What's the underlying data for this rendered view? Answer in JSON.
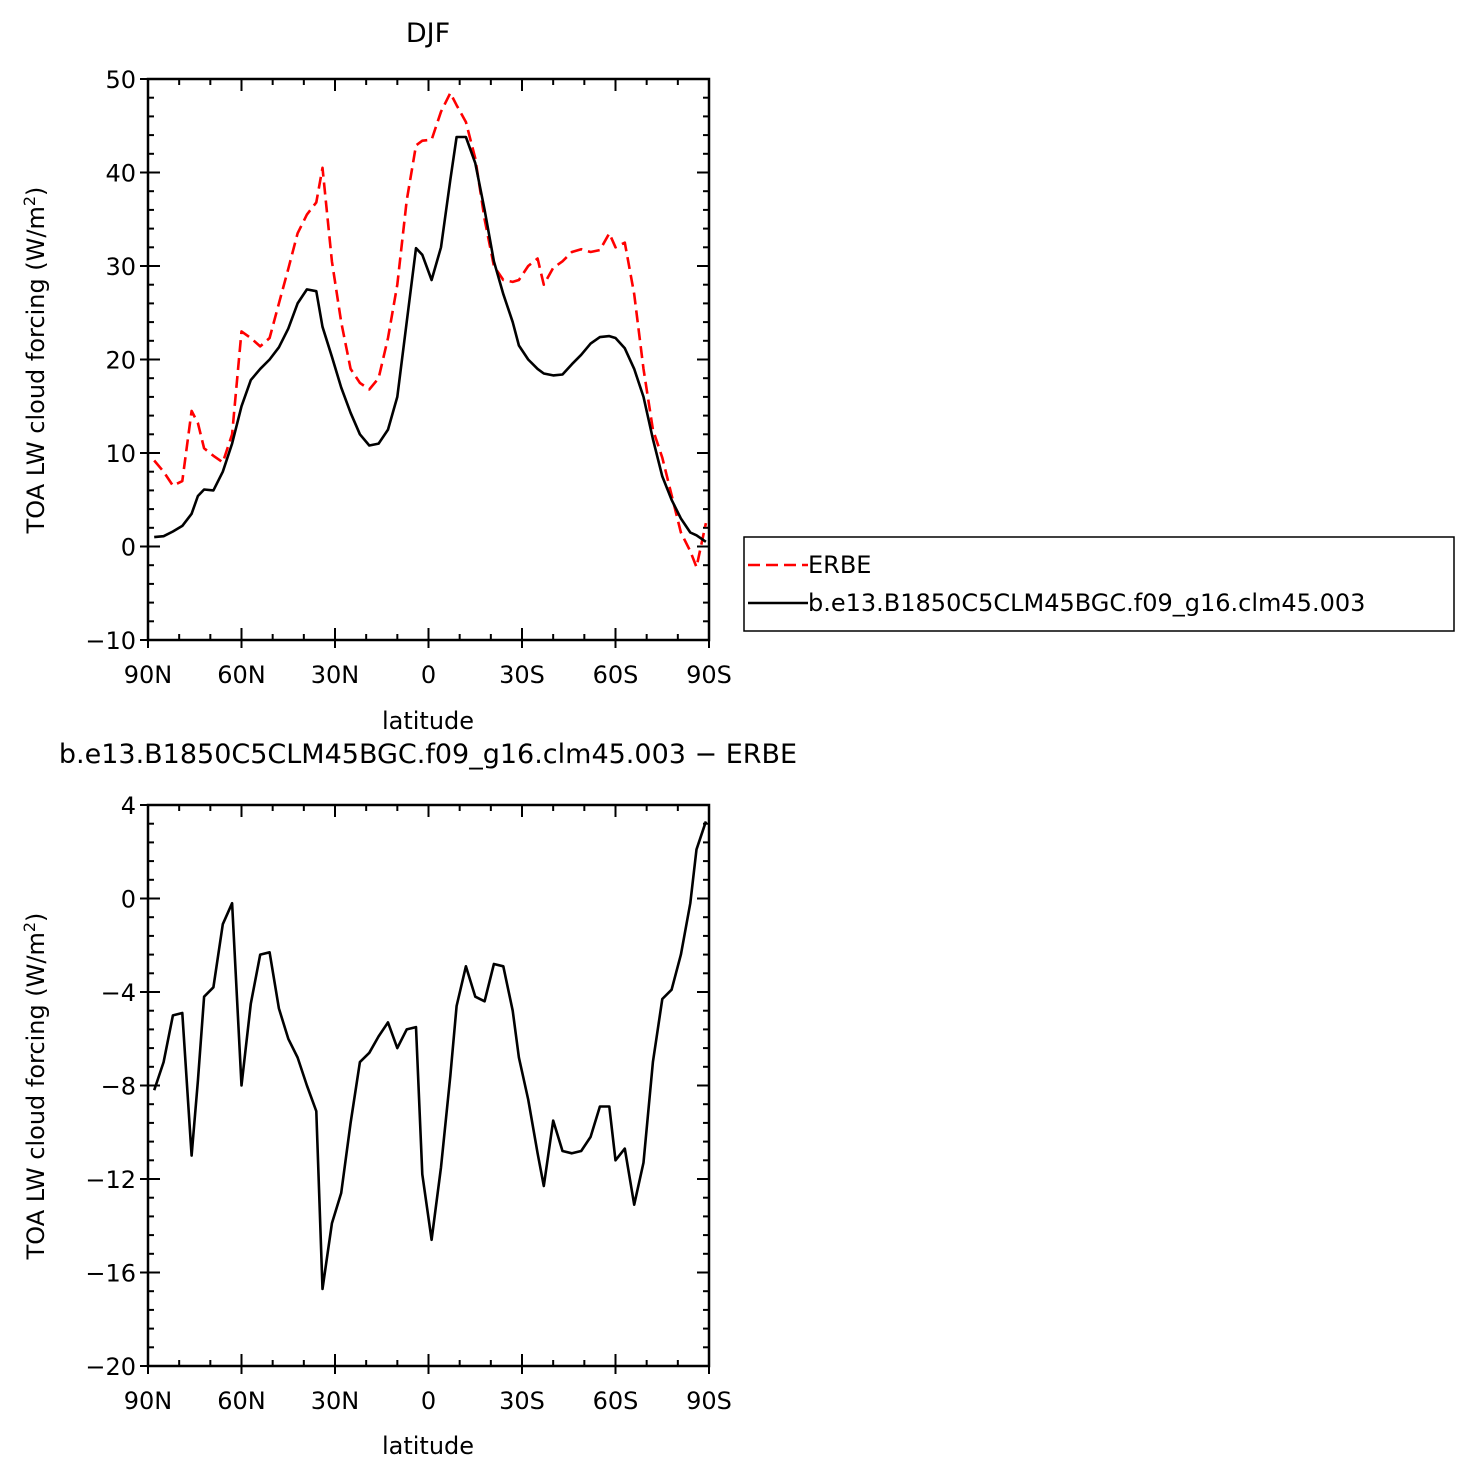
{
  "chart_data": [
    {
      "type": "line",
      "title": "DJF",
      "xlabel": "latitude",
      "ylabel": "TOA LW cloud forcing (W/m",
      "ylabel_sup": "2",
      "ylabel_close": ")",
      "xlim": [
        90,
        -90
      ],
      "ylim": [
        -10,
        50
      ],
      "x_ticks": [
        {
          "value": 90,
          "label": "90N"
        },
        {
          "value": 60,
          "label": "60N"
        },
        {
          "value": 30,
          "label": "30N"
        },
        {
          "value": 0,
          "label": "0"
        },
        {
          "value": -30,
          "label": "30S"
        },
        {
          "value": -60,
          "label": "60S"
        },
        {
          "value": -90,
          "label": "90S"
        }
      ],
      "y_ticks": [
        -10,
        0,
        10,
        20,
        30,
        40,
        50
      ],
      "y_tick_labels": [
        "−10",
        "0",
        "10",
        "20",
        "30",
        "40",
        "50"
      ],
      "legend_position": "right",
      "series": [
        {
          "name": "ERBE",
          "color": "#ff0000",
          "dash": true,
          "x": [
            88,
            85,
            82,
            79,
            76,
            74,
            72,
            69,
            66,
            63,
            60,
            57,
            54,
            51,
            48,
            45,
            42,
            39,
            36,
            34,
            31,
            28,
            25,
            22,
            19,
            16,
            13,
            10,
            7,
            4,
            2,
            -1,
            -4,
            -7,
            -9,
            -12,
            -15,
            -18,
            -21,
            -24,
            -27,
            -29,
            -32,
            -35,
            -37,
            -40,
            -43,
            -46,
            -49,
            -52,
            -55,
            -58,
            -60,
            -63,
            -66,
            -69,
            -72,
            -75,
            -78,
            -81,
            -84,
            -86,
            -89
          ],
          "values": [
            9.2,
            8.0,
            6.5,
            7.0,
            14.5,
            13.2,
            10.5,
            9.7,
            9.0,
            12.0,
            23.0,
            22.3,
            21.4,
            22.3,
            26.0,
            29.7,
            33.5,
            35.5,
            36.8,
            40.5,
            30.5,
            24.0,
            19.0,
            17.5,
            16.8,
            18.0,
            22.3,
            28.0,
            37.0,
            42.9,
            43.4,
            43.5,
            46.5,
            48.5,
            47.2,
            45.4,
            41.5,
            35.0,
            30.0,
            28.5,
            28.3,
            28.5,
            30.0,
            30.8,
            28.0,
            29.8,
            30.5,
            31.5,
            31.8,
            31.5,
            31.7,
            33.5,
            32.0,
            32.5,
            27.0,
            19.0,
            12.5,
            9.5,
            5.5,
            1.5,
            -0.5,
            -2.2,
            2.5
          ]
        },
        {
          "name": "b.e13.B1850C5CLM45BGC.f09_g16.clm45.003",
          "color": "#000000",
          "dash": false,
          "x": [
            88,
            85,
            82,
            79,
            76,
            74,
            72,
            69,
            66,
            63,
            60,
            57,
            54,
            51,
            48,
            45,
            42,
            39,
            36,
            34,
            31,
            28,
            25,
            22,
            19,
            16,
            13,
            10,
            7,
            4,
            2,
            -1,
            -4,
            -7,
            -9,
            -12,
            -15,
            -18,
            -21,
            -24,
            -27,
            -29,
            -32,
            -35,
            -37,
            -40,
            -43,
            -46,
            -49,
            -52,
            -55,
            -58,
            -60,
            -63,
            -66,
            -69,
            -72,
            -75,
            -78,
            -81,
            -84,
            -86,
            -89
          ],
          "values": [
            1.0,
            1.1,
            1.6,
            2.2,
            3.5,
            5.4,
            6.1,
            6.0,
            8.0,
            11.0,
            15.0,
            17.8,
            19.0,
            20.0,
            21.3,
            23.3,
            26.0,
            27.5,
            27.3,
            23.5,
            20.3,
            17.0,
            14.3,
            12.0,
            10.8,
            11.0,
            12.5,
            16.0,
            24.0,
            31.9,
            31.2,
            28.5,
            32.0,
            39.2,
            43.8,
            43.8,
            41.0,
            36.0,
            30.5,
            27.0,
            24.0,
            21.5,
            20.0,
            19.0,
            18.5,
            18.3,
            18.4,
            19.5,
            20.5,
            21.7,
            22.4,
            22.5,
            22.3,
            21.2,
            19.0,
            16.0,
            11.5,
            7.5,
            5.0,
            3.0,
            1.5,
            1.2,
            0.5
          ]
        }
      ]
    },
    {
      "type": "line",
      "title": "b.e13.B1850C5CLM45BGC.f09_g16.clm45.003 − ERBE",
      "xlabel": "latitude",
      "ylabel": "TOA LW cloud forcing (W/m",
      "ylabel_sup": "2",
      "ylabel_close": ")",
      "xlim": [
        90,
        -90
      ],
      "ylim": [
        -20,
        4
      ],
      "x_ticks": [
        {
          "value": 90,
          "label": "90N"
        },
        {
          "value": 60,
          "label": "60N"
        },
        {
          "value": 30,
          "label": "30N"
        },
        {
          "value": 0,
          "label": "0"
        },
        {
          "value": -30,
          "label": "30S"
        },
        {
          "value": -60,
          "label": "60S"
        },
        {
          "value": -90,
          "label": "90S"
        }
      ],
      "y_ticks": [
        -20,
        -16,
        -12,
        -8,
        -4,
        0,
        4
      ],
      "y_tick_labels": [
        "−20",
        "−16",
        "−12",
        "−8",
        "−4",
        "0",
        "4"
      ],
      "series": [
        {
          "name": "",
          "color": "#000000",
          "dash": false,
          "x": [
            88,
            85,
            82,
            79,
            76,
            74,
            72,
            69,
            66,
            63,
            60,
            57,
            54,
            51,
            48,
            45,
            42,
            39,
            36,
            34,
            31,
            28,
            25,
            22,
            19,
            16,
            13,
            10,
            7,
            4,
            2,
            -1,
            -4,
            -7,
            -9,
            -12,
            -15,
            -18,
            -21,
            -24,
            -27,
            -29,
            -32,
            -35,
            -37,
            -40,
            -43,
            -46,
            -49,
            -52,
            -55,
            -58,
            -60,
            -63,
            -66,
            -69,
            -72,
            -75,
            -78,
            -81,
            -84,
            -86,
            -89
          ],
          "values": [
            -8.2,
            -7.0,
            -5.0,
            -4.9,
            -11.0,
            -7.8,
            -4.2,
            -3.8,
            -1.1,
            -0.2,
            -8.0,
            -4.5,
            -2.4,
            -2.3,
            -4.7,
            -6.0,
            -6.8,
            -8.0,
            -9.1,
            -16.7,
            -13.9,
            -12.6,
            -9.6,
            -7.0,
            -6.6,
            -5.9,
            -5.3,
            -6.4,
            -5.6,
            -5.5,
            -11.8,
            -14.6,
            -11.5,
            -7.6,
            -4.6,
            -2.9,
            -4.2,
            -4.4,
            -2.8,
            -2.9,
            -4.8,
            -6.8,
            -8.6,
            -10.9,
            -12.3,
            -9.5,
            -10.8,
            -10.9,
            -10.8,
            -10.2,
            -8.9,
            -8.9,
            -11.2,
            -10.7,
            -13.1,
            -11.3,
            -7.0,
            -4.3,
            -3.9,
            -2.4,
            -0.2,
            2.1,
            3.3
          ]
        }
      ]
    }
  ]
}
